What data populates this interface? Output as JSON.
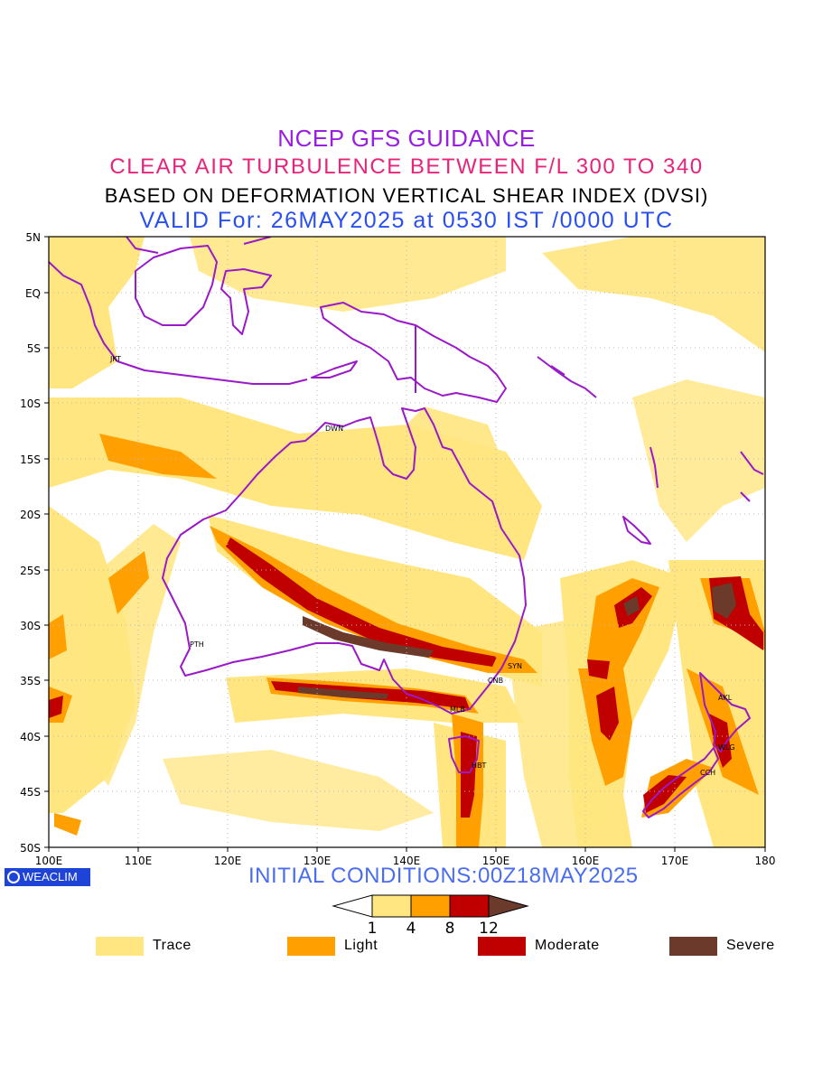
{
  "titles": {
    "line1": "NCEP GFS GUIDANCE",
    "line2": "CLEAR AIR TURBULENCE BETWEEN F/L 300 TO 340",
    "line3": "BASED ON DEFORMATION VERTICAL SHEAR INDEX (DVSI)",
    "line4": "VALID For: 26MAY2025 at 0530 IST /0000 UTC"
  },
  "colors": {
    "trace": "#ffe680",
    "light": "#ffa000",
    "moderate": "#c00000",
    "severe": "#6b3a2a",
    "coast": "#9a19c8"
  },
  "axes": {
    "lat_labels": [
      "5N",
      "EQ",
      "5S",
      "10S",
      "15S",
      "20S",
      "25S",
      "30S",
      "35S",
      "40S",
      "45S",
      "50S"
    ],
    "lon_labels": [
      "100E",
      "110E",
      "120E",
      "130E",
      "140E",
      "150E",
      "160E",
      "170E",
      "180"
    ],
    "lat_range": [
      5,
      -50
    ],
    "lon_range": [
      100,
      180
    ]
  },
  "stations": [
    {
      "code": "JKT",
      "lon": 106.8,
      "lat": -6.2
    },
    {
      "code": "DWN",
      "lon": 130.8,
      "lat": -12.4
    },
    {
      "code": "PTH",
      "lon": 115.8,
      "lat": -31.9
    },
    {
      "code": "SYN",
      "lon": 151.2,
      "lat": -33.9
    },
    {
      "code": "CNB",
      "lon": 149.1,
      "lat": -35.3
    },
    {
      "code": "MLB",
      "lon": 144.9,
      "lat": -37.8
    },
    {
      "code": "HBT",
      "lon": 147.3,
      "lat": -42.9
    },
    {
      "code": "AKL",
      "lon": 174.8,
      "lat": -36.8
    },
    {
      "code": "WLG",
      "lon": 174.8,
      "lat": -41.3
    },
    {
      "code": "CCH",
      "lon": 172.6,
      "lat": -43.5
    }
  ],
  "colorbar": {
    "ticks": [
      "1",
      "4",
      "8",
      "12"
    ]
  },
  "legend": [
    {
      "label": "Trace",
      "color": "#ffe680"
    },
    {
      "label": "Light",
      "color": "#ffa000"
    },
    {
      "label": "Moderate",
      "color": "#c00000"
    },
    {
      "label": "Severe",
      "color": "#6b3a2a"
    }
  ],
  "initial_conditions": "INITIAL CONDITIONS:00Z18MAY2025",
  "badge": "WEACLIM"
}
